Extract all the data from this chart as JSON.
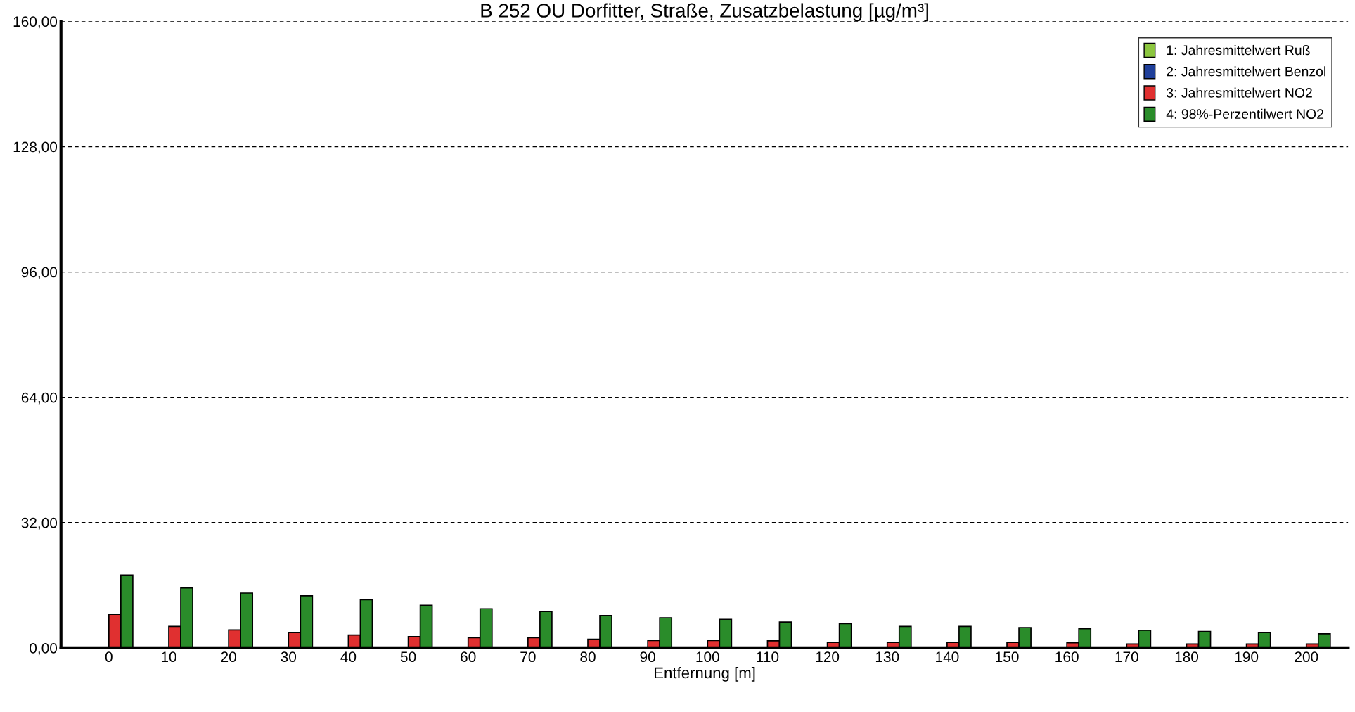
{
  "chart_data": {
    "type": "bar",
    "title": "B 252 OU Dorfitter, Straße, Zusatzbelastung [µg/m³]",
    "xlabel": "Entfernung [m]",
    "categories": [
      "0",
      "10",
      "20",
      "30",
      "40",
      "50",
      "60",
      "70",
      "80",
      "90",
      "100",
      "110",
      "120",
      "130",
      "140",
      "150",
      "160",
      "170",
      "180",
      "190",
      "200"
    ],
    "series": [
      {
        "name": "1: Jahresmittelwert Ruß",
        "color": "#8cc63f",
        "values": [
          null,
          null,
          null,
          null,
          null,
          null,
          null,
          null,
          null,
          null,
          null,
          null,
          null,
          null,
          null,
          null,
          null,
          null,
          null,
          null,
          null
        ]
      },
      {
        "name": "2: Jahresmittelwert Benzol",
        "color": "#1f3f9a",
        "values": [
          null,
          null,
          null,
          null,
          null,
          null,
          null,
          null,
          null,
          null,
          null,
          null,
          null,
          null,
          null,
          null,
          null,
          null,
          null,
          null,
          null
        ]
      },
      {
        "name": "3: Jahresmittelwert NO2",
        "color": "#e03030",
        "values": [
          8.6,
          5.5,
          4.6,
          3.9,
          3.3,
          2.9,
          2.6,
          2.6,
          2.2,
          1.9,
          1.9,
          1.8,
          1.4,
          1.4,
          1.4,
          1.4,
          1.3,
          1.0,
          1.0,
          1.0,
          1.0
        ]
      },
      {
        "name": "4: 98%-Perzentilwert NO2",
        "color": "#2a8c2a",
        "values": [
          18.6,
          15.3,
          14.0,
          13.3,
          12.3,
          10.9,
          10.0,
          9.3,
          8.3,
          7.7,
          7.3,
          6.6,
          6.2,
          5.5,
          5.5,
          5.2,
          4.9,
          4.5,
          4.2,
          3.9,
          3.6
        ]
      }
    ],
    "ylim": [
      0,
      160
    ],
    "yticks": [
      {
        "value": 0,
        "label": "0,00"
      },
      {
        "value": 32,
        "label": "32,00"
      },
      {
        "value": 64,
        "label": "64,00"
      },
      {
        "value": 96,
        "label": "96,00"
      },
      {
        "value": 128,
        "label": "128,00"
      },
      {
        "value": 160,
        "label": "160,00"
      }
    ],
    "grid": "y",
    "legend": "top right"
  }
}
